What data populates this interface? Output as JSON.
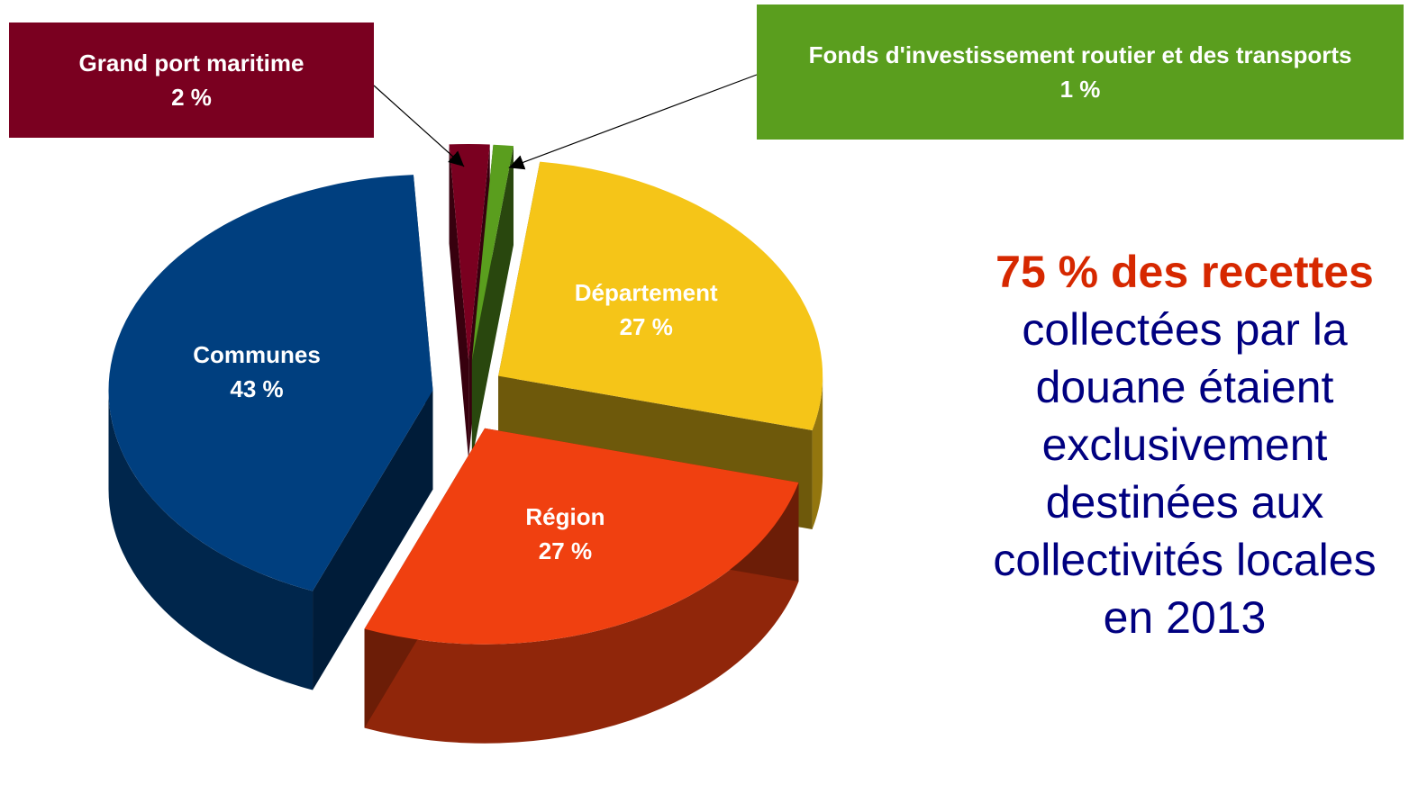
{
  "chart_data": {
    "type": "pie",
    "categories": [
      "Grand port maritime",
      "Fonds d'investissement routier et des transports",
      "Département",
      "Région",
      "Communes"
    ],
    "values": [
      2,
      1,
      27,
      27,
      43
    ],
    "value_labels": [
      "2 %",
      "1 %",
      "27 %",
      "27 %",
      "43 %"
    ],
    "colors": [
      "#7a0020",
      "#5a9e1e",
      "#f5c518",
      "#f04010",
      "#003f7f"
    ],
    "annotation": {
      "highlight": "75 % des recettes",
      "text": "collectées par la douane étaient exclusivement destinées aux collectivités locales en 2013"
    }
  }
}
